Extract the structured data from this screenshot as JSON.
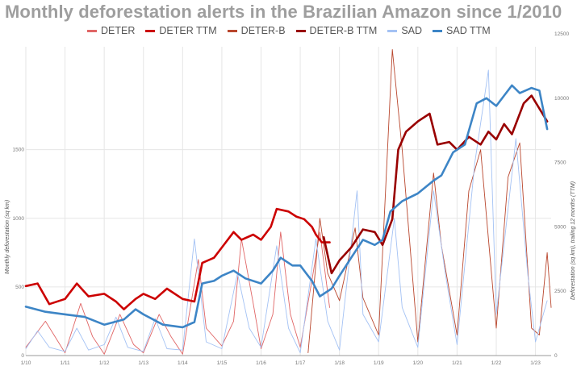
{
  "chart_data": {
    "type": "line",
    "title": "Monthly deforestation alerts in the Brazilian Amazon since 1/2010",
    "ylabel_left": "Monthly deforestation (sq km)",
    "ylabel_right": "Deforestation (sq km), trailing 12 months (TTM)",
    "ylim_left": [
      0,
      2250
    ],
    "ylim_right": [
      0,
      12000
    ],
    "left_ticks": [
      "0",
      "500",
      "1000",
      "1500"
    ],
    "right_ticks": [
      "0",
      "2500",
      "5000",
      "7500",
      "10000",
      "12500"
    ],
    "x_tick_labels": [
      "1/10",
      "1/11",
      "1/12",
      "1/13",
      "1/14",
      "1/15",
      "1/16",
      "1/17",
      "1/18",
      "1/19",
      "1/20",
      "1/21",
      "1/22",
      "1/23"
    ],
    "grid": true,
    "legend_position": "top",
    "series": [
      {
        "name": "DETER",
        "color": "#e06666",
        "axis": "left",
        "width": 0.9,
        "points": [
          [
            2010.0,
            60
          ],
          [
            2010.5,
            250
          ],
          [
            2011.0,
            20
          ],
          [
            2011.4,
            380
          ],
          [
            2011.7,
            140
          ],
          [
            2012.0,
            10
          ],
          [
            2012.4,
            300
          ],
          [
            2012.75,
            80
          ],
          [
            2013.0,
            20
          ],
          [
            2013.4,
            300
          ],
          [
            2013.7,
            140
          ],
          [
            2014.0,
            10
          ],
          [
            2014.4,
            700
          ],
          [
            2014.6,
            200
          ],
          [
            2015.0,
            70
          ],
          [
            2015.3,
            250
          ],
          [
            2015.5,
            850
          ],
          [
            2015.8,
            380
          ],
          [
            2016.0,
            50
          ],
          [
            2016.3,
            300
          ],
          [
            2016.5,
            900
          ],
          [
            2016.75,
            300
          ],
          [
            2017.0,
            60
          ],
          [
            2017.3,
            550
          ],
          [
            2017.5,
            900
          ],
          [
            2017.75,
            350
          ]
        ]
      },
      {
        "name": "DETER TTM",
        "color": "#cc0000",
        "axis": "right",
        "width": 2.6,
        "points": [
          [
            2010.0,
            2700
          ],
          [
            2010.3,
            2800
          ],
          [
            2010.6,
            2000
          ],
          [
            2011.0,
            2200
          ],
          [
            2011.3,
            2800
          ],
          [
            2011.6,
            2300
          ],
          [
            2012.0,
            2400
          ],
          [
            2012.3,
            2100
          ],
          [
            2012.5,
            1800
          ],
          [
            2012.8,
            2200
          ],
          [
            2013.0,
            2400
          ],
          [
            2013.3,
            2200
          ],
          [
            2013.6,
            2600
          ],
          [
            2014.0,
            2200
          ],
          [
            2014.3,
            2100
          ],
          [
            2014.5,
            3600
          ],
          [
            2014.8,
            3800
          ],
          [
            2015.0,
            4200
          ],
          [
            2015.3,
            4800
          ],
          [
            2015.5,
            4500
          ],
          [
            2015.8,
            4700
          ],
          [
            2016.0,
            4500
          ],
          [
            2016.25,
            5000
          ],
          [
            2016.4,
            5700
          ],
          [
            2016.7,
            5600
          ],
          [
            2016.9,
            5400
          ],
          [
            2017.1,
            5300
          ],
          [
            2017.3,
            5000
          ],
          [
            2017.4,
            4700
          ],
          [
            2017.55,
            4400
          ],
          [
            2017.75,
            4400
          ]
        ]
      },
      {
        "name": "DETER-B",
        "color": "#b9472e",
        "axis": "left",
        "width": 0.9,
        "points": [
          [
            2017.2,
            20
          ],
          [
            2017.5,
            1000
          ],
          [
            2017.7,
            600
          ],
          [
            2018.0,
            400
          ],
          [
            2018.4,
            930
          ],
          [
            2018.6,
            420
          ],
          [
            2019.0,
            150
          ],
          [
            2019.35,
            2230
          ],
          [
            2019.6,
            1500
          ],
          [
            2020.0,
            100
          ],
          [
            2020.4,
            1330
          ],
          [
            2020.6,
            800
          ],
          [
            2021.0,
            150
          ],
          [
            2021.3,
            1200
          ],
          [
            2021.6,
            1500
          ],
          [
            2022.0,
            200
          ],
          [
            2022.3,
            1300
          ],
          [
            2022.6,
            1550
          ],
          [
            2022.9,
            200
          ],
          [
            2023.1,
            150
          ],
          [
            2023.3,
            750
          ],
          [
            2023.4,
            350
          ]
        ]
      },
      {
        "name": "DETER-B TTM",
        "color": "#990000",
        "axis": "right",
        "width": 2.6,
        "points": [
          [
            2017.6,
            4600
          ],
          [
            2017.8,
            3200
          ],
          [
            2018.0,
            3700
          ],
          [
            2018.3,
            4200
          ],
          [
            2018.6,
            4900
          ],
          [
            2018.9,
            4800
          ],
          [
            2019.1,
            4300
          ],
          [
            2019.35,
            5300
          ],
          [
            2019.5,
            8000
          ],
          [
            2019.7,
            8700
          ],
          [
            2020.0,
            9100
          ],
          [
            2020.3,
            9400
          ],
          [
            2020.5,
            8200
          ],
          [
            2020.8,
            8300
          ],
          [
            2021.0,
            8000
          ],
          [
            2021.3,
            8500
          ],
          [
            2021.6,
            8200
          ],
          [
            2021.8,
            8700
          ],
          [
            2022.0,
            8400
          ],
          [
            2022.2,
            9000
          ],
          [
            2022.4,
            8600
          ],
          [
            2022.7,
            9800
          ],
          [
            2022.9,
            10100
          ],
          [
            2023.1,
            9600
          ],
          [
            2023.3,
            9100
          ]
        ]
      },
      {
        "name": "SAD",
        "color": "#a4c2f4",
        "axis": "left",
        "width": 0.9,
        "points": [
          [
            2010.0,
            50
          ],
          [
            2010.3,
            180
          ],
          [
            2010.6,
            60
          ],
          [
            2011.0,
            30
          ],
          [
            2011.3,
            200
          ],
          [
            2011.6,
            40
          ],
          [
            2012.0,
            80
          ],
          [
            2012.3,
            280
          ],
          [
            2012.6,
            60
          ],
          [
            2013.0,
            30
          ],
          [
            2013.3,
            270
          ],
          [
            2013.6,
            50
          ],
          [
            2014.0,
            40
          ],
          [
            2014.3,
            850
          ],
          [
            2014.6,
            100
          ],
          [
            2015.0,
            50
          ],
          [
            2015.4,
            600
          ],
          [
            2015.7,
            200
          ],
          [
            2016.0,
            60
          ],
          [
            2016.4,
            800
          ],
          [
            2016.7,
            200
          ],
          [
            2017.0,
            20
          ],
          [
            2017.4,
            850
          ],
          [
            2017.7,
            250
          ],
          [
            2018.0,
            40
          ],
          [
            2018.45,
            1200
          ],
          [
            2018.6,
            300
          ],
          [
            2019.0,
            100
          ],
          [
            2019.4,
            1000
          ],
          [
            2019.6,
            350
          ],
          [
            2020.0,
            60
          ],
          [
            2020.4,
            1200
          ],
          [
            2020.7,
            600
          ],
          [
            2021.0,
            80
          ],
          [
            2021.45,
            1400
          ],
          [
            2021.8,
            2080
          ],
          [
            2022.0,
            300
          ],
          [
            2022.5,
            1580
          ],
          [
            2022.8,
            600
          ],
          [
            2023.0,
            100
          ],
          [
            2023.3,
            400
          ]
        ]
      },
      {
        "name": "SAD TTM",
        "color": "#3d85c6",
        "axis": "right",
        "width": 2.6,
        "points": [
          [
            2010.0,
            1900
          ],
          [
            2010.5,
            1700
          ],
          [
            2011.0,
            1600
          ],
          [
            2011.5,
            1500
          ],
          [
            2012.0,
            1200
          ],
          [
            2012.5,
            1400
          ],
          [
            2012.8,
            1800
          ],
          [
            2013.0,
            1600
          ],
          [
            2013.5,
            1200
          ],
          [
            2014.0,
            1100
          ],
          [
            2014.3,
            1300
          ],
          [
            2014.5,
            2800
          ],
          [
            2014.8,
            2900
          ],
          [
            2015.0,
            3100
          ],
          [
            2015.3,
            3300
          ],
          [
            2015.6,
            3000
          ],
          [
            2016.0,
            2800
          ],
          [
            2016.3,
            3300
          ],
          [
            2016.5,
            3800
          ],
          [
            2016.8,
            3500
          ],
          [
            2017.0,
            3500
          ],
          [
            2017.3,
            2900
          ],
          [
            2017.5,
            2300
          ],
          [
            2017.8,
            2600
          ],
          [
            2018.0,
            3100
          ],
          [
            2018.3,
            3800
          ],
          [
            2018.6,
            4500
          ],
          [
            2018.9,
            4300
          ],
          [
            2019.1,
            4500
          ],
          [
            2019.3,
            5600
          ],
          [
            2019.6,
            6000
          ],
          [
            2020.0,
            6300
          ],
          [
            2020.4,
            6800
          ],
          [
            2020.6,
            7000
          ],
          [
            2020.9,
            7900
          ],
          [
            2021.2,
            8200
          ],
          [
            2021.5,
            9800
          ],
          [
            2021.75,
            10000
          ],
          [
            2022.0,
            9700
          ],
          [
            2022.2,
            10100
          ],
          [
            2022.4,
            10500
          ],
          [
            2022.6,
            10200
          ],
          [
            2022.9,
            10400
          ],
          [
            2023.1,
            10300
          ],
          [
            2023.3,
            8800
          ]
        ]
      }
    ]
  }
}
